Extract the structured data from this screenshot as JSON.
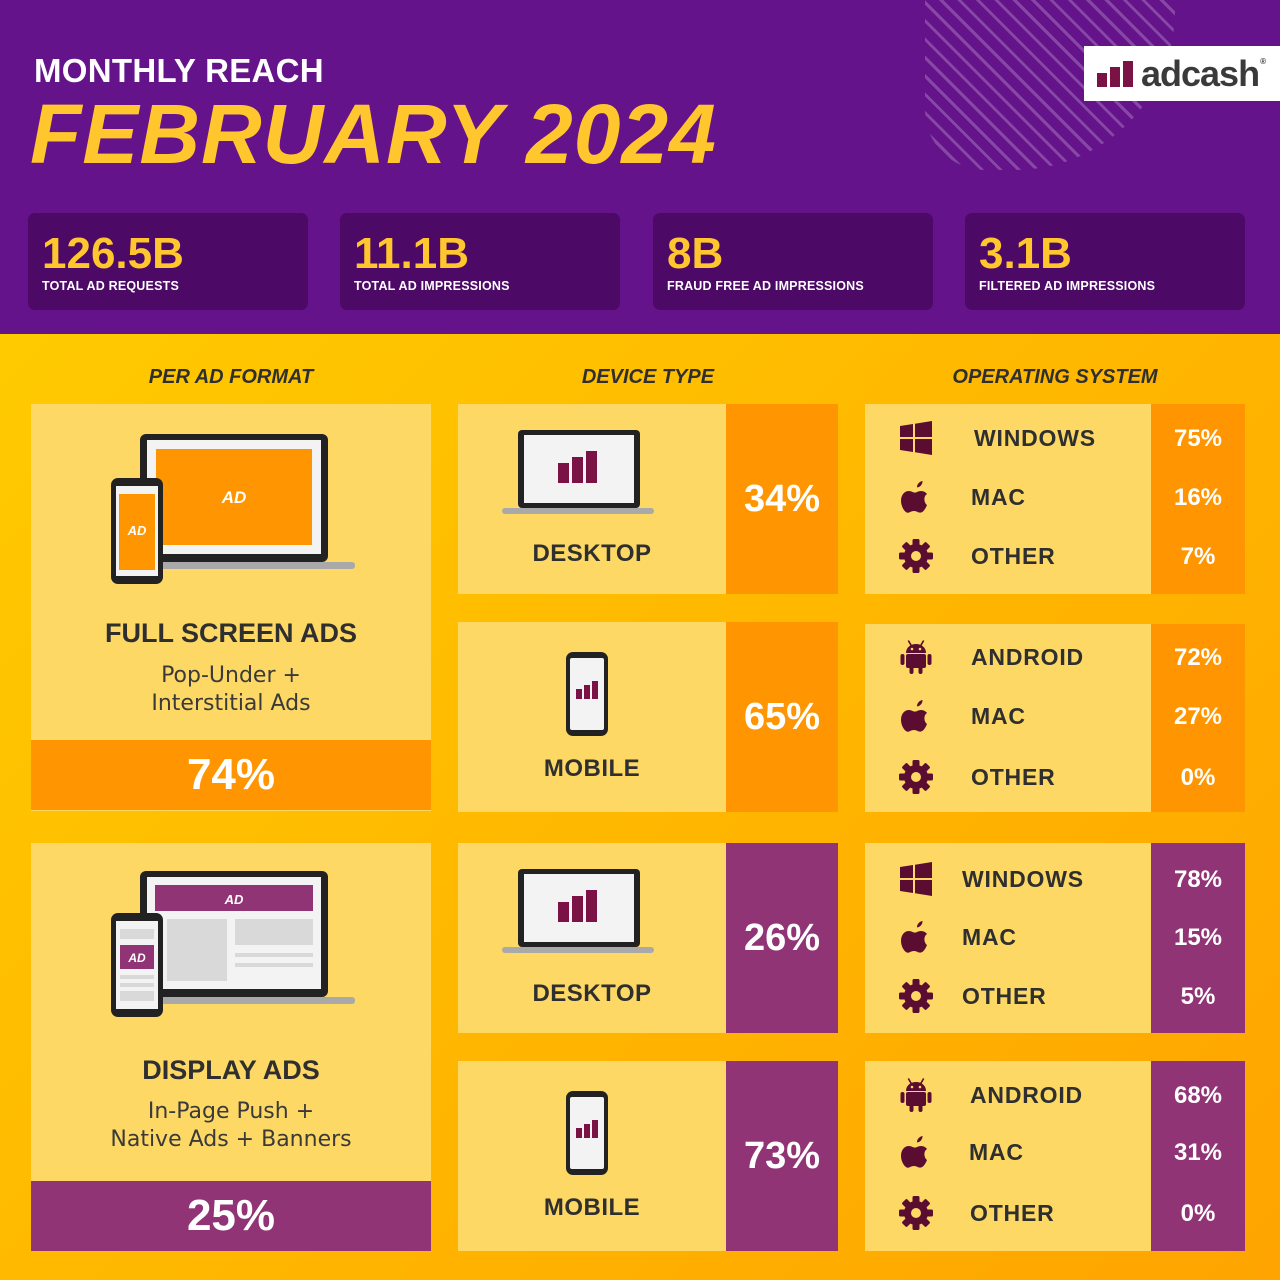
{
  "header": {
    "subtitle": "MONTHLY REACH",
    "title": "FEBRUARY 2024",
    "logo_text": "adcash",
    "logo_mark": "®"
  },
  "stats": [
    {
      "value": "126.5B",
      "label": "TOTAL AD REQUESTS"
    },
    {
      "value": "11.1B",
      "label": "TOTAL AD IMPRESSIONS"
    },
    {
      "value": "8B",
      "label": "FRAUD FREE AD IMPRESSIONS"
    },
    {
      "value": "3.1B",
      "label": "FILTERED AD IMPRESSIONS"
    }
  ],
  "columns": {
    "format": "PER AD FORMAT",
    "device": "DEVICE TYPE",
    "os": "OPERATING SYSTEM"
  },
  "colors": {
    "header_bg": "#65138a",
    "stat_bg": "#4c0a66",
    "accent_yellow": "#ffc62d",
    "card_bg": "#fdd865",
    "orange": "#ff9500",
    "purple": "#913476",
    "icon_dark": "#5a0d30"
  },
  "formats": [
    {
      "name": "FULL SCREEN ADS",
      "desc_line1": "Pop-Under +",
      "desc_line2": "Interstitial Ads",
      "percent": "74%",
      "illus_ad_label": "AD",
      "illus_phone_label": "AD",
      "devices": [
        {
          "label": "DESKTOP",
          "percent": "34%",
          "icon": "laptop-chart-icon"
        },
        {
          "label": "MOBILE",
          "percent": "65%",
          "icon": "phone-chart-icon"
        }
      ],
      "os_groups": [
        [
          {
            "name": "WINDOWS",
            "percent": "75%",
            "icon": "windows-icon"
          },
          {
            "name": "MAC",
            "percent": "16%",
            "icon": "apple-icon"
          },
          {
            "name": "OTHER",
            "percent": "7%",
            "icon": "gear-icon"
          }
        ],
        [
          {
            "name": "ANDROID",
            "percent": "72%",
            "icon": "android-icon"
          },
          {
            "name": "MAC",
            "percent": "27%",
            "icon": "apple-icon"
          },
          {
            "name": "OTHER",
            "percent": "0%",
            "icon": "gear-icon"
          }
        ]
      ]
    },
    {
      "name": "DISPLAY ADS",
      "desc_line1": "In-Page Push +",
      "desc_line2": "Native Ads + Banners",
      "percent": "25%",
      "illus_ad_label": "AD",
      "illus_phone_label": "AD",
      "devices": [
        {
          "label": "DESKTOP",
          "percent": "26%",
          "icon": "laptop-chart-icon"
        },
        {
          "label": "MOBILE",
          "percent": "73%",
          "icon": "phone-chart-icon"
        }
      ],
      "os_groups": [
        [
          {
            "name": "WINDOWS",
            "percent": "78%",
            "icon": "windows-icon"
          },
          {
            "name": "MAC",
            "percent": "15%",
            "icon": "apple-icon"
          },
          {
            "name": "OTHER",
            "percent": "5%",
            "icon": "gear-icon"
          }
        ],
        [
          {
            "name": "ANDROID",
            "percent": "68%",
            "icon": "android-icon"
          },
          {
            "name": "MAC",
            "percent": "31%",
            "icon": "apple-icon"
          },
          {
            "name": "OTHER",
            "percent": "0%",
            "icon": "gear-icon"
          }
        ]
      ]
    }
  ]
}
